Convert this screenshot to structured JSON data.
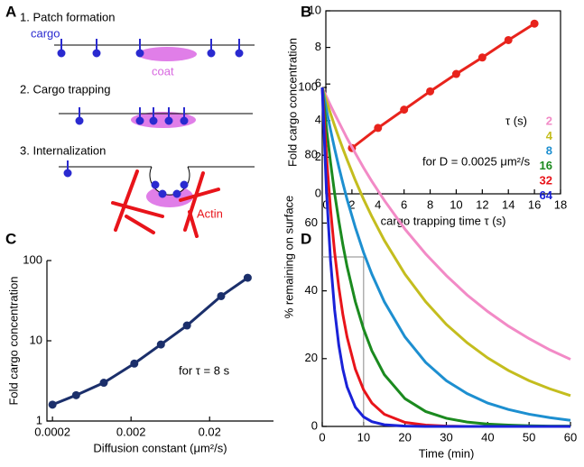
{
  "panel_labels": [
    "A",
    "B",
    "C",
    "D"
  ],
  "diagram": {
    "step_1": "1.  Patch formation",
    "cargo": "cargo",
    "coat": "coat",
    "step_2": "2.  Cargo trapping",
    "step_3": "3.  Internalization",
    "actin": "Actin"
  },
  "chart_data": [
    {
      "type": "line",
      "x_label": "cargo trapping time τ (s)",
      "y_label": "Fold cargo concentration",
      "annotation": "for D = 0.0025 μm²/s",
      "x": [
        2,
        4,
        6,
        8,
        10,
        12,
        14,
        16
      ],
      "series": [
        {
          "name": null,
          "color": "#e8231c",
          "values": [
            2.5,
            3.6,
            4.6,
            5.6,
            6.55,
            7.45,
            8.4,
            9.3
          ]
        }
      ],
      "markers": true,
      "xlim": [
        0,
        18
      ],
      "xticks": [
        0,
        2,
        4,
        6,
        8,
        10,
        12,
        14,
        16,
        18
      ],
      "ylim": [
        0,
        10
      ],
      "yticks": [
        0,
        2,
        4,
        6,
        8,
        10
      ]
    },
    {
      "type": "line",
      "x_label": "Diffusion constant (μm²/s)",
      "y_label": "Fold cargo concentration",
      "annotation": "for τ = 8 s",
      "x": [
        0.0002,
        0.0004,
        0.0009,
        0.0022,
        0.0048,
        0.0103,
        0.028,
        0.061
      ],
      "series": [
        {
          "name": null,
          "color": "#1b2f6b",
          "values": [
            1.6,
            2.1,
            3.0,
            5.2,
            9.0,
            15.5,
            36,
            61
          ]
        }
      ],
      "markers": true,
      "xlog": true,
      "ylog": true,
      "xlim": [
        0.00017,
        0.13
      ],
      "xticks": [
        0.0002,
        0.002,
        0.02
      ],
      "ylim": [
        1,
        100
      ],
      "yticks": [
        1,
        10,
        100
      ]
    },
    {
      "type": "line",
      "x_label": "Time (min)",
      "y_label": "% remaining on surface",
      "legend_title": "τ (s)",
      "x": [
        0,
        1,
        2,
        3,
        4,
        5,
        6,
        8,
        10,
        12,
        15,
        20,
        25,
        30,
        35,
        40,
        45,
        50,
        55,
        60
      ],
      "series": [
        {
          "name": "2",
          "color": "#f28ac6",
          "values": [
            100,
            97.3,
            94.7,
            92.2,
            89.8,
            87.4,
            85.0,
            80.6,
            76.3,
            72.3,
            66.7,
            58.2,
            50.9,
            44.5,
            38.8,
            33.9,
            29.6,
            25.9,
            22.6,
            19.8
          ]
        },
        {
          "name": "4",
          "color": "#c4bd1e",
          "values": [
            100,
            96.1,
            92.3,
            88.7,
            85.2,
            81.9,
            78.7,
            72.6,
            67.0,
            61.9,
            54.9,
            44.9,
            36.8,
            30.1,
            24.7,
            20.2,
            16.5,
            13.5,
            11.1,
            9.1
          ]
        },
        {
          "name": "8",
          "color": "#1d8fd0",
          "values": [
            100,
            93.5,
            87.5,
            81.9,
            76.6,
            71.7,
            67.0,
            58.7,
            51.3,
            44.9,
            36.8,
            26.4,
            18.9,
            13.5,
            9.7,
            6.9,
            5.0,
            3.6,
            2.6,
            1.8
          ]
        },
        {
          "name": "16",
          "color": "#1b8a1f",
          "values": [
            100,
            88.2,
            77.9,
            68.7,
            60.7,
            53.5,
            47.2,
            36.8,
            28.7,
            22.3,
            15.3,
            8.2,
            4.4,
            2.4,
            1.3,
            0.7,
            0.4,
            0.2,
            0.1,
            0.1
          ]
        },
        {
          "name": "32",
          "color": "#e8141a",
          "values": [
            100,
            80.1,
            64.1,
            51.3,
            41.1,
            32.9,
            26.4,
            16.9,
            10.8,
            6.9,
            3.6,
            1.2,
            0.4,
            0.1,
            0,
            0,
            0,
            0,
            0,
            0
          ]
        },
        {
          "name": "64",
          "color": "#1a22d8",
          "values": [
            100,
            70.0,
            49.0,
            34.3,
            24.0,
            16.8,
            11.7,
            5.7,
            2.8,
            1.4,
            0.5,
            0.1,
            0,
            0,
            0,
            0,
            0,
            0,
            0,
            0
          ]
        }
      ],
      "guide": {
        "x": 10,
        "y": 50
      },
      "xlim": [
        0,
        60
      ],
      "xticks": [
        0,
        10,
        20,
        30,
        40,
        50,
        60
      ],
      "ylim": [
        0,
        100
      ],
      "yticks": [
        0,
        20,
        40,
        60,
        80,
        100
      ]
    }
  ]
}
